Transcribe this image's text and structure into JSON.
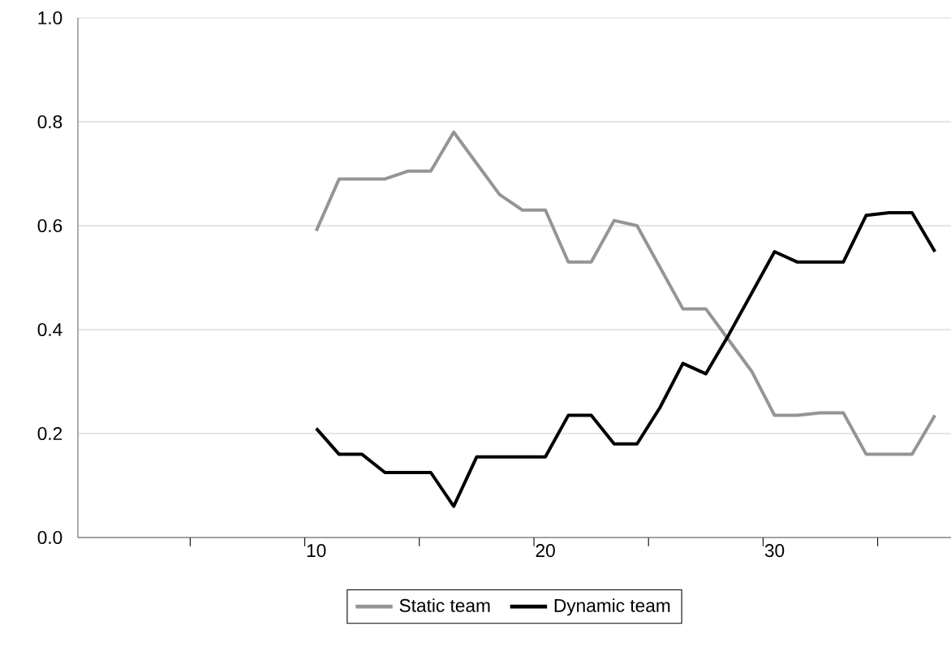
{
  "chart_data": {
    "type": "line",
    "x": [
      10,
      11,
      12,
      13,
      14,
      15,
      16,
      17,
      18,
      19,
      20,
      21,
      22,
      23,
      24,
      25,
      26,
      27,
      28,
      29,
      30,
      31,
      32,
      33,
      34,
      35,
      36,
      37
    ],
    "series": [
      {
        "name": "Static team",
        "color": "#939598",
        "values": [
          0.59,
          0.69,
          0.69,
          0.69,
          0.705,
          0.705,
          0.78,
          0.72,
          0.66,
          0.63,
          0.63,
          0.53,
          0.53,
          0.61,
          0.6,
          0.52,
          0.44,
          0.44,
          0.38,
          0.32,
          0.235,
          0.235,
          0.24,
          0.24,
          0.16,
          0.16,
          0.16,
          0.235
        ]
      },
      {
        "name": "Dynamic team",
        "color": "#000000",
        "values": [
          0.21,
          0.16,
          0.16,
          0.125,
          0.125,
          0.125,
          0.06,
          0.155,
          0.155,
          0.155,
          0.155,
          0.235,
          0.235,
          0.18,
          0.18,
          0.25,
          0.335,
          0.315,
          0.39,
          0.47,
          0.55,
          0.53,
          0.53,
          0.53,
          0.62,
          0.625,
          0.625,
          0.55
        ]
      }
    ],
    "xlim": [
      -0.4,
      37.7
    ],
    "xticks": [
      {
        "value": 4.5,
        "label": null
      },
      {
        "value": 9.5,
        "label": null
      },
      10,
      {
        "value": 14.5,
        "label": null
      },
      {
        "value": 19.5,
        "label": null
      },
      20,
      {
        "value": 24.5,
        "label": null
      },
      {
        "value": 29.5,
        "label": null
      },
      30,
      {
        "value": 34.5,
        "label": null
      }
    ],
    "ylim": [
      0,
      1
    ],
    "yticks": [
      {
        "value": 0,
        "label": "0.0"
      },
      0.2,
      0.4,
      0.6,
      0.8,
      {
        "value": 1,
        "label": "1.0"
      }
    ],
    "grid": "y",
    "legend": "bottom",
    "marker": "none",
    "line_style": "solid"
  }
}
